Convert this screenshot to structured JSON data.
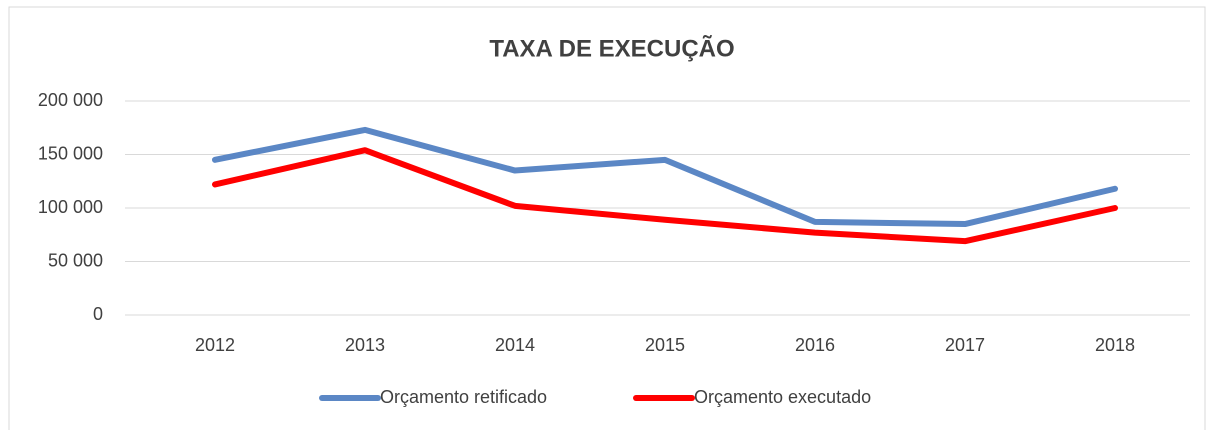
{
  "chart_data": {
    "type": "line",
    "title": "TAXA DE EXECUÇÃO",
    "categories": [
      "2012",
      "2013",
      "2014",
      "2015",
      "2016",
      "2017",
      "2018"
    ],
    "series": [
      {
        "name": "Orçamento retificado",
        "color": "#5b87c5",
        "values": [
          145000,
          173000,
          135000,
          145000,
          87000,
          85000,
          118000
        ]
      },
      {
        "name": "Orçamento executado",
        "color": "#ff0000",
        "values": [
          122000,
          154000,
          102000,
          89000,
          77000,
          69000,
          100000
        ]
      }
    ],
    "ylim": [
      0,
      200000
    ],
    "yticks": [
      0,
      {
        "value": 50000,
        "label": "50 000"
      },
      {
        "value": 100000,
        "label": "100 000"
      },
      {
        "value": 150000,
        "label": "150 000"
      },
      {
        "value": 200000,
        "label": "200 000"
      }
    ],
    "grid": true,
    "legend": "bottom"
  }
}
